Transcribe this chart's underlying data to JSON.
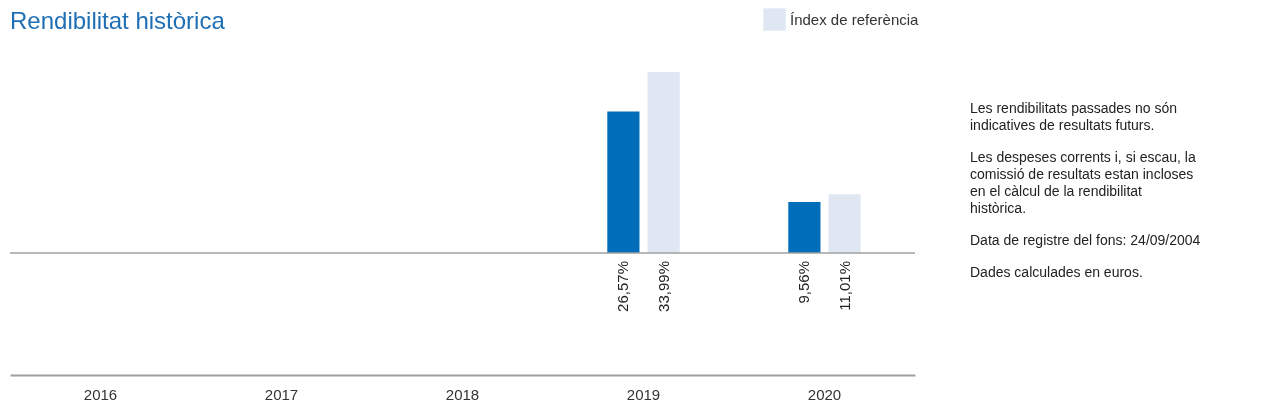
{
  "chart_data": {
    "type": "bar",
    "title": "Rendibilitat històrica",
    "categories": [
      "2016",
      "2017",
      "2018",
      "2019",
      "2020"
    ],
    "series": [
      {
        "color": "#006dba",
        "values": [
          null,
          null,
          null,
          26.57,
          9.56
        ],
        "value_labels": [
          null,
          null,
          null,
          "26,57%",
          "9,56%"
        ]
      },
      {
        "name": "Índex de referència",
        "color": "#dfe7f3",
        "values": [
          null,
          null,
          null,
          33.99,
          11.01
        ],
        "value_labels": [
          null,
          null,
          null,
          "33,99%",
          "11,01%"
        ]
      }
    ],
    "tick_labels": "x",
    "grid": false,
    "legend": "top right",
    "ref_lines": [
      {
        "axis": "y",
        "value": 0,
        "color": "#a0a0a0"
      }
    ],
    "annotations": [
      "Les rendibilitats passades no són indicatives de resultats futurs.",
      "Les despeses corrents i, si escau, la comissió de resultats estan incloses en el càlcul de la rendibilitat històrica.",
      "Data de registre del fons: 24/09/2004",
      "Dades calculades en euros."
    ]
  }
}
